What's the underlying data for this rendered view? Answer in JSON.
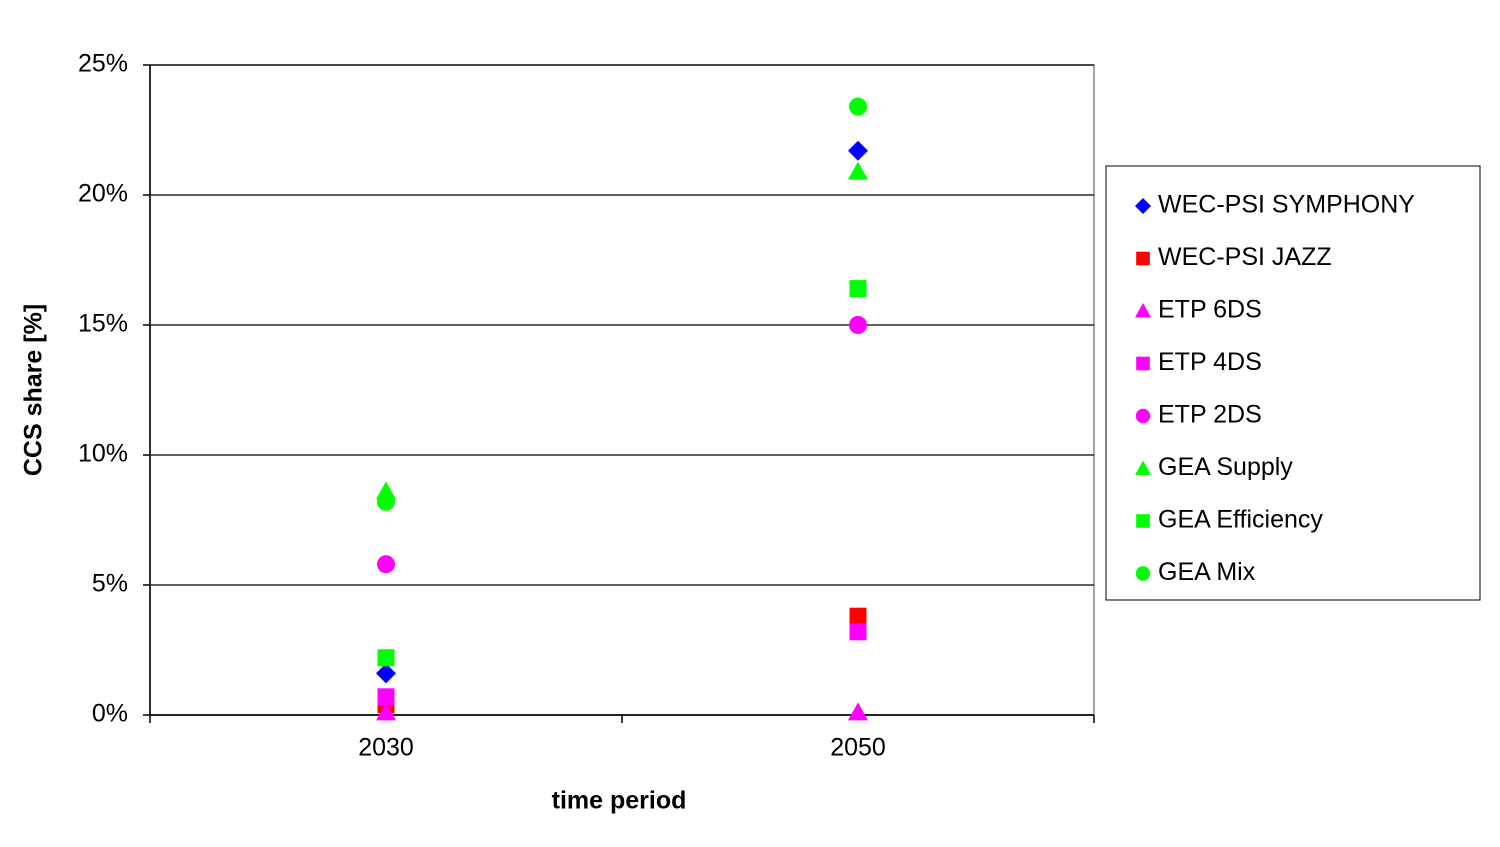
{
  "chart_data": {
    "type": "scatter",
    "xlabel": "time period",
    "ylabel": "CCS share [%]",
    "categories": [
      "2030",
      "2050"
    ],
    "ylim": [
      0,
      25
    ],
    "yticks": [
      {
        "value": 0,
        "label": "0%"
      },
      {
        "value": 5,
        "label": "5%"
      },
      {
        "value": 10,
        "label": "10%"
      },
      {
        "value": 15,
        "label": "15%"
      },
      {
        "value": 20,
        "label": "20%"
      },
      {
        "value": 25,
        "label": "25%"
      }
    ],
    "grid": true,
    "legend": "right",
    "series": [
      {
        "name": "WEC-PSI SYMPHONY",
        "color": "#0000ff",
        "marker": "diamond",
        "values": [
          1.6,
          21.7
        ]
      },
      {
        "name": "WEC-PSI JAZZ",
        "color": "#ff0000",
        "marker": "square",
        "values": [
          0.4,
          3.8
        ]
      },
      {
        "name": "ETP 6DS",
        "color": "#ff00ff",
        "marker": "triangle",
        "values": [
          0.1,
          0.1
        ]
      },
      {
        "name": "ETP 4DS",
        "color": "#ff00ff",
        "marker": "square",
        "values": [
          0.7,
          3.2
        ]
      },
      {
        "name": "ETP 2DS",
        "color": "#ff00ff",
        "marker": "circle",
        "values": [
          5.8,
          15.0
        ]
      },
      {
        "name": "GEA Supply",
        "color": "#00ff00",
        "marker": "triangle",
        "values": [
          8.6,
          20.9
        ]
      },
      {
        "name": "GEA Efficiency",
        "color": "#00ff00",
        "marker": "square",
        "values": [
          2.2,
          16.4
        ]
      },
      {
        "name": "GEA Mix",
        "color": "#00ff00",
        "marker": "circle",
        "values": [
          8.2,
          23.4
        ]
      }
    ]
  }
}
